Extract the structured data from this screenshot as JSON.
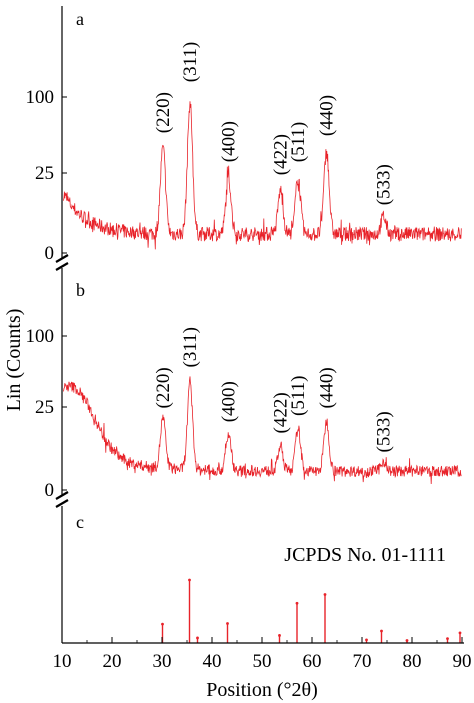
{
  "chart_data": {
    "type": "line",
    "xlabel": "Position (°2θ)",
    "ylabel": "Lin (Counts)",
    "x_ticks": [
      "10",
      "20",
      "30",
      "40",
      "50",
      "60",
      "70",
      "80",
      "90"
    ],
    "xlim": [
      10,
      90
    ],
    "colors": {
      "pattern": "#e8232a",
      "reference": "#e8232a",
      "axis": "#000000"
    },
    "panels": [
      {
        "label": "a",
        "y_ticks": [
          "0",
          "25",
          "100"
        ],
        "peaks": [
          {
            "hkl": "(220)",
            "position": 30.2,
            "intensity": 73
          },
          {
            "hkl": "(311)",
            "position": 35.6,
            "intensity": 104
          },
          {
            "hkl": "(400)",
            "position": 43.3,
            "intensity": 53
          },
          {
            "hkl": "(422)",
            "position": 53.7,
            "intensity": 44
          },
          {
            "hkl": "(511)",
            "position": 57.2,
            "intensity": 53
          },
          {
            "hkl": "(440)",
            "position": 62.9,
            "intensity": 71
          },
          {
            "hkl": "(533)",
            "position": 74.3,
            "intensity": 26
          }
        ]
      },
      {
        "label": "b",
        "y_ticks": [
          "0",
          "25",
          "100"
        ],
        "peaks": [
          {
            "hkl": "(220)",
            "position": 30.2,
            "intensity": 54
          },
          {
            "hkl": "(311)",
            "position": 35.6,
            "intensity": 82
          },
          {
            "hkl": "(400)",
            "position": 43.3,
            "intensity": 43
          },
          {
            "hkl": "(422)",
            "position": 53.7,
            "intensity": 34
          },
          {
            "hkl": "(511)",
            "position": 57.2,
            "intensity": 48
          },
          {
            "hkl": "(440)",
            "position": 62.9,
            "intensity": 54
          },
          {
            "hkl": "(533)",
            "position": 74.3,
            "intensity": 22
          }
        ]
      },
      {
        "label": "c",
        "reference": "JCPDS No. 01-1111",
        "sticks": [
          {
            "position": 30.1,
            "intensity": 30
          },
          {
            "position": 35.5,
            "intensity": 100
          },
          {
            "position": 37.1,
            "intensity": 8
          },
          {
            "position": 43.1,
            "intensity": 31
          },
          {
            "position": 53.5,
            "intensity": 12
          },
          {
            "position": 57.0,
            "intensity": 63
          },
          {
            "position": 62.6,
            "intensity": 77
          },
          {
            "position": 70.9,
            "intensity": 5
          },
          {
            "position": 73.9,
            "intensity": 19
          },
          {
            "position": 79.0,
            "intensity": 4
          },
          {
            "position": 87.1,
            "intensity": 7
          },
          {
            "position": 89.6,
            "intensity": 16
          }
        ]
      }
    ]
  }
}
